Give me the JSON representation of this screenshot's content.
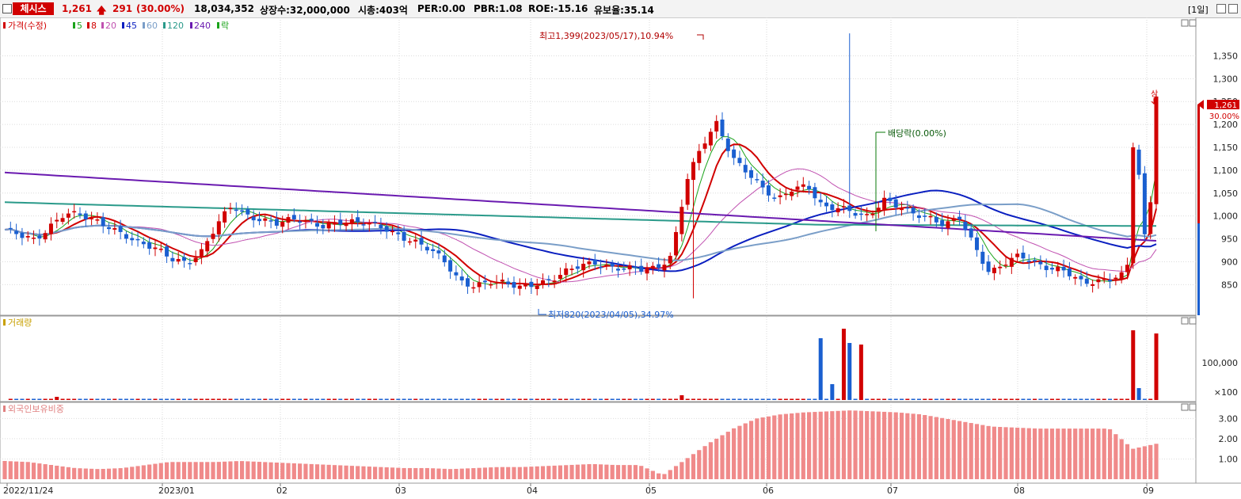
{
  "header": {
    "stock_name": "체시스",
    "price": "1,261",
    "change_arrow": "up-arrow-icon",
    "change": "291",
    "change_pct": "(30.00%)",
    "volume": "18,034,352",
    "listed_shares": "상장수:32,000,000",
    "market_cap": "시총:403억",
    "per": "PER:0.00",
    "pbr": "PBR:1.08",
    "roe": "ROE:-15.16",
    "float_ratio": "유보율:35.14",
    "period_button": "[1일]",
    "colors": {
      "up": "#d10000",
      "down": "#1a5fd0"
    }
  },
  "price_panel": {
    "legend_title": "가격(수정)",
    "ma_legend": [
      {
        "label": "5",
        "color": "#1aa31a"
      },
      {
        "label": "8",
        "color": "#d10000"
      },
      {
        "label": "20",
        "color": "#c050b0"
      },
      {
        "label": "45",
        "color": "#0a1fc0"
      },
      {
        "label": "60",
        "color": "#7a9ec8"
      },
      {
        "label": "120",
        "color": "#2a9a8a"
      },
      {
        "label": "240",
        "color": "#6a1ab0"
      },
      {
        "label": "락",
        "color": "#1aa31a"
      }
    ],
    "annotation_high": "최고1,399(2023/05/17),10.94%",
    "annotation_low": "최저820(2023/04/05),34.97%",
    "annotation_dividend": "배당락(0.00%)",
    "limit_up_label": "상",
    "current_price_tag": "1,261",
    "current_pct_tag": "30.00%",
    "y_ticks": [
      "1,350",
      "1,300",
      "1,250",
      "1,200",
      "1,150",
      "1,100",
      "1,050",
      "1,000",
      "950",
      "900",
      "850"
    ]
  },
  "volume_panel": {
    "legend_title": "거래량",
    "y_ticks": [
      "100,000",
      "×100"
    ]
  },
  "foreign_panel": {
    "legend_title": "외국인보유비중",
    "y_ticks": [
      "3.00",
      "2.00",
      "1.00"
    ]
  },
  "x_axis_labels": [
    "2022/11/24",
    "2023/01",
    "02",
    "03",
    "04",
    "05",
    "06",
    "07",
    "08",
    "09"
  ],
  "chart_data": {
    "type": "candlestick",
    "x_axis_labels": [
      "2022/11/24",
      "2023/01",
      "02",
      "03",
      "04",
      "05",
      "06",
      "07",
      "08",
      "09"
    ],
    "price_range": [
      790,
      1420
    ],
    "high": {
      "value": 1399,
      "date": "2023/05/17"
    },
    "low": {
      "value": 820,
      "date": "2023/04/05"
    },
    "last": {
      "price": 1261,
      "change": 291,
      "change_pct": 30.0,
      "volume": 18034352
    },
    "series": [
      {
        "name": "5",
        "type": "line"
      },
      {
        "name": "8",
        "type": "line"
      },
      {
        "name": "20",
        "type": "line"
      },
      {
        "name": "45",
        "type": "line"
      },
      {
        "name": "60",
        "type": "line"
      },
      {
        "name": "120",
        "type": "line"
      },
      {
        "name": "240",
        "type": "line"
      }
    ],
    "closes_sampled": [
      970,
      955,
      945,
      980,
      1010,
      1000,
      985,
      975,
      960,
      940,
      925,
      905,
      900,
      925,
      980,
      1020,
      1000,
      995,
      985,
      990,
      985,
      980,
      990,
      985,
      980,
      975,
      960,
      945,
      925,
      900,
      860,
      850,
      855,
      850,
      845,
      855,
      860,
      875,
      890,
      900,
      890,
      885,
      880,
      885,
      915,
      1080,
      1150,
      1200,
      1130,
      1100,
      1060,
      1030,
      1060,
      1070,
      1020,
      1015,
      1005,
      1000,
      1040,
      1020,
      1000,
      995,
      985,
      1000,
      930,
      870,
      900,
      920,
      895,
      880,
      880,
      860,
      858,
      860,
      870,
      1090,
      1261
    ],
    "foreign_ratio_sampled": [
      0.9,
      0.85,
      0.7,
      0.55,
      0.5,
      0.55,
      0.7,
      0.85,
      0.85,
      0.85,
      0.9,
      0.85,
      0.8,
      0.75,
      0.7,
      0.65,
      0.6,
      0.55,
      0.55,
      0.5,
      0.55,
      0.6,
      0.6,
      0.65,
      0.7,
      0.75,
      0.7,
      0.7,
      0.2,
      1.0,
      1.8,
      2.5,
      3.0,
      3.2,
      3.3,
      3.35,
      3.4,
      3.35,
      3.3,
      3.2,
      3.0,
      2.8,
      2.6,
      2.55,
      2.5,
      2.5,
      2.5,
      2.5,
      1.5,
      1.75
    ]
  }
}
